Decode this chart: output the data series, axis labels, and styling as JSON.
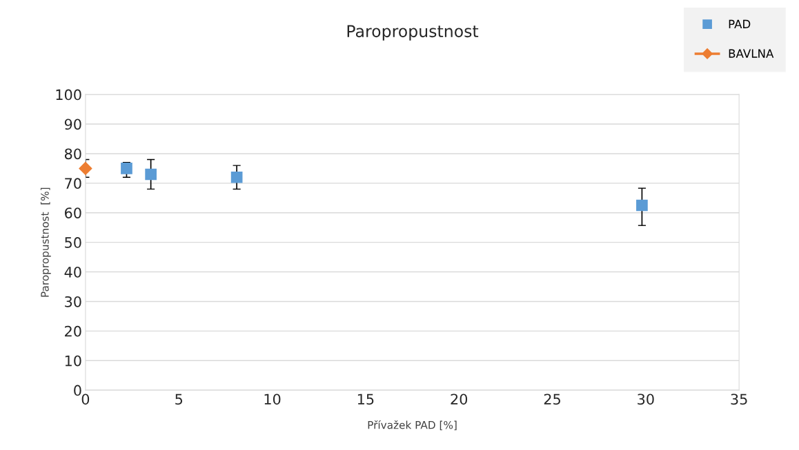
{
  "chart_data": {
    "type": "scatter",
    "title": "Paropropustnost",
    "xlabel": "Přívažek PAD [%]",
    "ylabel": "Paropropustnost  [%]",
    "xlim": [
      0,
      35
    ],
    "xticks": [
      0,
      5,
      10,
      15,
      20,
      25,
      30,
      35
    ],
    "ylim": [
      0,
      100
    ],
    "yticks": [
      0,
      10,
      20,
      30,
      40,
      50,
      60,
      70,
      80,
      90,
      100
    ],
    "grid": "y",
    "legend": "top right",
    "series": [
      {
        "name": "PAD",
        "marker": "square",
        "color": "#5b9bd5",
        "x": [
          2.2,
          3.5,
          8.1,
          29.8
        ],
        "values": [
          75,
          73,
          72,
          62.5
        ],
        "errors": [
          [
            72,
            77
          ],
          [
            68,
            78
          ],
          [
            68,
            76
          ],
          [
            55.7,
            68.3
          ]
        ]
      },
      {
        "name": "BAVLNA",
        "type": "line",
        "marker": "diamond",
        "color": "#ed7d31",
        "x": [
          0
        ],
        "values": [
          75
        ],
        "errors": [
          [
            72,
            78
          ]
        ]
      }
    ]
  }
}
